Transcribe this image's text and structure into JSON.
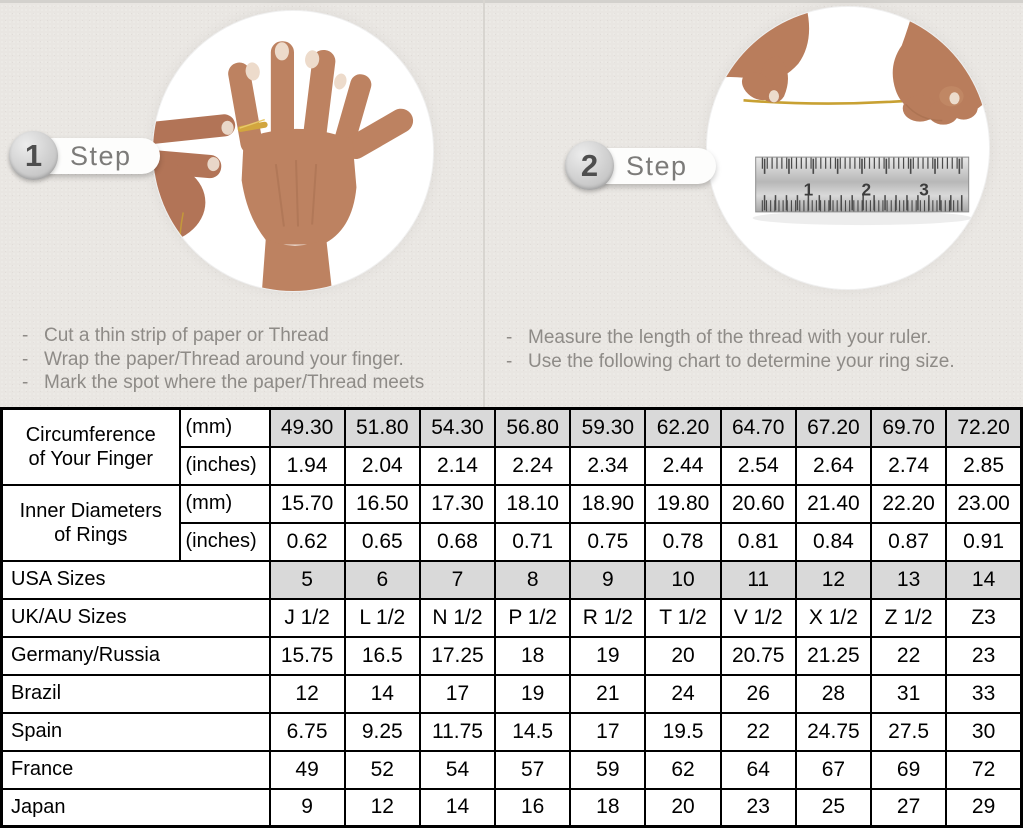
{
  "bullet_char": "-",
  "steps": [
    {
      "number": "1",
      "label": "Step",
      "photo": "hand-with-thread-around-ring-finger",
      "instructions": [
        "Cut a thin strip of paper or Thread",
        "Wrap the paper/Thread around your finger.",
        "Mark the spot where the paper/Thread meets"
      ]
    },
    {
      "number": "2",
      "label": "Step",
      "photo": "hands-measuring-thread-with-ruler",
      "ruler_numbers": [
        "1",
        "2",
        "3"
      ],
      "instructions": [
        "Measure the length of the thread with your ruler.",
        "Use the following chart to determine your ring size."
      ]
    }
  ],
  "size_chart": {
    "highlight_color": "#d9d9d9",
    "rows": [
      {
        "group": "Circumference of Your Finger",
        "unit": "(mm)",
        "highlight": true,
        "values": [
          "49.30",
          "51.80",
          "54.30",
          "56.80",
          "59.30",
          "62.20",
          "64.70",
          "67.20",
          "69.70",
          "72.20"
        ]
      },
      {
        "unit": "(inches)",
        "highlight": false,
        "values": [
          "1.94",
          "2.04",
          "2.14",
          "2.24",
          "2.34",
          "2.44",
          "2.54",
          "2.64",
          "2.74",
          "2.85"
        ]
      },
      {
        "group": "Inner Diameters of Rings",
        "unit": "(mm)",
        "highlight": false,
        "values": [
          "15.70",
          "16.50",
          "17.30",
          "18.10",
          "18.90",
          "19.80",
          "20.60",
          "21.40",
          "22.20",
          "23.00"
        ]
      },
      {
        "unit": "(inches)",
        "highlight": false,
        "values": [
          "0.62",
          "0.65",
          "0.68",
          "0.71",
          "0.75",
          "0.78",
          "0.81",
          "0.84",
          "0.87",
          "0.91"
        ]
      },
      {
        "label": "USA Sizes",
        "highlight": true,
        "values": [
          "5",
          "6",
          "7",
          "8",
          "9",
          "10",
          "11",
          "12",
          "13",
          "14"
        ]
      },
      {
        "label": "UK/AU Sizes",
        "highlight": false,
        "values": [
          "J 1/2",
          "L 1/2",
          "N 1/2",
          "P 1/2",
          "R 1/2",
          "T 1/2",
          "V 1/2",
          "X 1/2",
          "Z 1/2",
          "Z3"
        ]
      },
      {
        "label": "Germany/Russia",
        "highlight": false,
        "values": [
          "15.75",
          "16.5",
          "17.25",
          "18",
          "19",
          "20",
          "20.75",
          "21.25",
          "22",
          "23"
        ]
      },
      {
        "label": "Brazil",
        "highlight": false,
        "values": [
          "12",
          "14",
          "17",
          "19",
          "21",
          "24",
          "26",
          "28",
          "31",
          "33"
        ]
      },
      {
        "label": "Spain",
        "highlight": false,
        "values": [
          "6.75",
          "9.25",
          "11.75",
          "14.5",
          "17",
          "19.5",
          "22",
          "24.75",
          "27.5",
          "30"
        ]
      },
      {
        "label": "France",
        "highlight": false,
        "values": [
          "49",
          "52",
          "54",
          "57",
          "59",
          "62",
          "64",
          "67",
          "69",
          "72"
        ]
      },
      {
        "label": "Japan",
        "highlight": false,
        "values": [
          "9",
          "12",
          "14",
          "16",
          "18",
          "20",
          "23",
          "25",
          "27",
          "29"
        ]
      }
    ]
  }
}
